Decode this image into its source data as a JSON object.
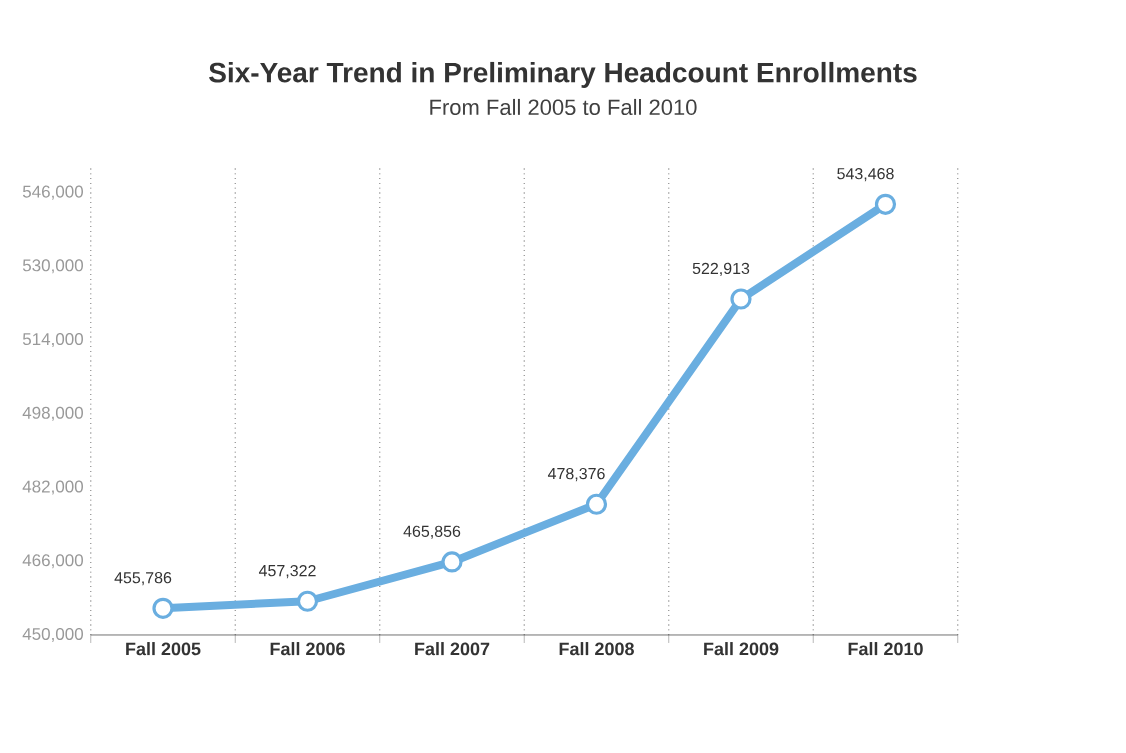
{
  "chart_data": {
    "type": "line",
    "title": "Six-Year Trend in Preliminary Headcount Enrollments",
    "subtitle": "From Fall 2005 to Fall 2010",
    "categories": [
      "Fall 2005",
      "Fall 2006",
      "Fall 2007",
      "Fall 2008",
      "Fall 2009",
      "Fall 2010"
    ],
    "values": [
      455786,
      457322,
      465856,
      478376,
      522913,
      543468
    ],
    "value_labels": [
      "455,786",
      "457,322",
      "465,856",
      "478,376",
      "522,913",
      "543,468"
    ],
    "color": "#6aaee0",
    "marker": "circle",
    "line_style": "solid",
    "grid": "x",
    "ylim": [
      450000,
      552000
    ],
    "yticks": [
      {
        "value": 450000,
        "label": "450,000"
      },
      {
        "value": 466000,
        "label": "466,000"
      },
      {
        "value": 482000,
        "label": "482,000"
      },
      {
        "value": 498000,
        "label": "498,000"
      },
      {
        "value": 514000,
        "label": "514,000"
      },
      {
        "value": 530000,
        "label": "530,000"
      },
      {
        "value": 546000,
        "label": "546,000"
      }
    ]
  }
}
